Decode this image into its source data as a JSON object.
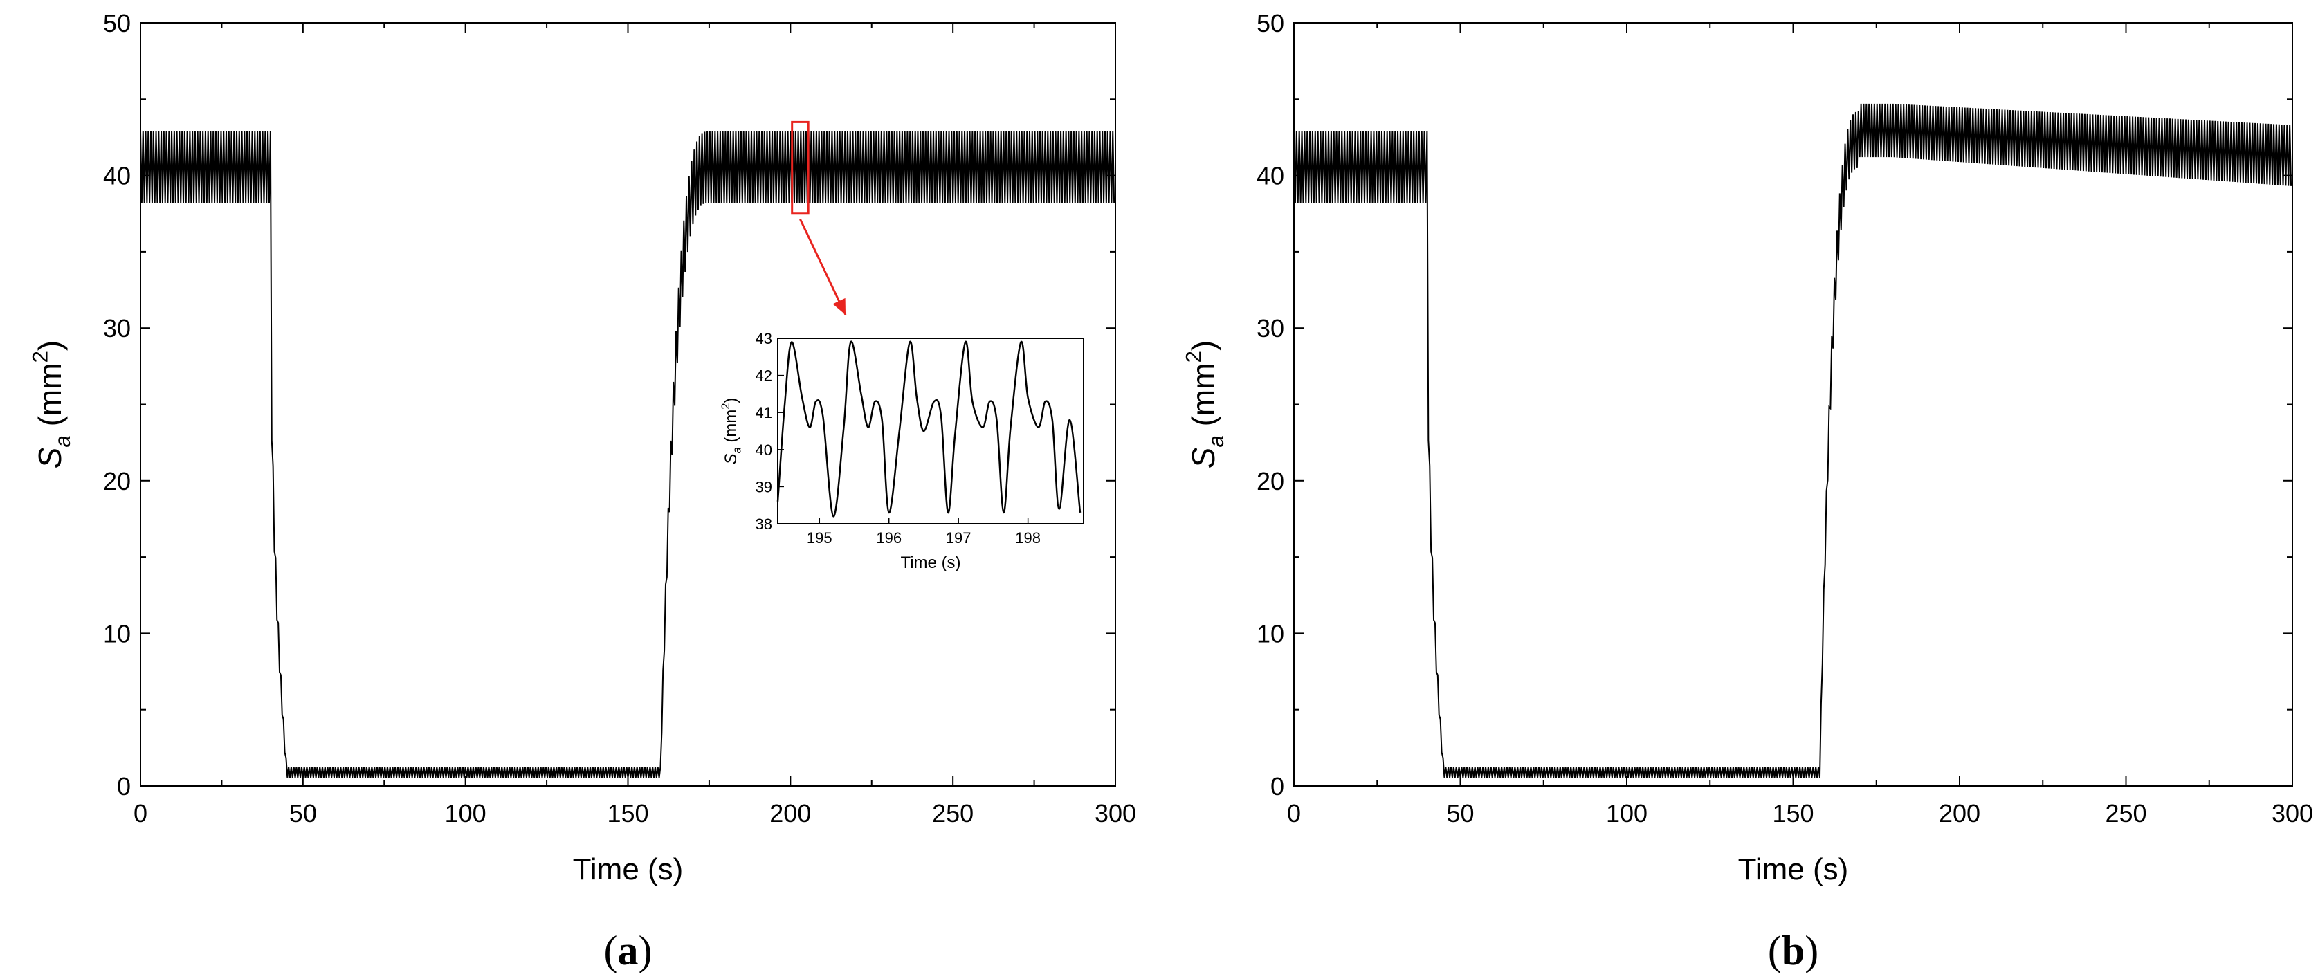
{
  "chart_data": [
    {
      "type": "line",
      "panel_label": "a",
      "xlabel": "Time (s)",
      "ylabel": {
        "symbol": "S",
        "subscript": "a",
        "unit_open": " (mm",
        "unit_sup": "2",
        "unit_close": ")"
      },
      "xlim": [
        0,
        300
      ],
      "ylim": [
        0,
        50
      ],
      "xticks": [
        0,
        50,
        100,
        150,
        200,
        250,
        300
      ],
      "yticks": [
        0,
        10,
        20,
        30,
        40,
        50
      ],
      "grid": false,
      "legend": "none",
      "line_color": "#000000",
      "series": [
        {
          "oscillation_period_s": 0.8,
          "segments": [
            {
              "x": [
                0,
                40
              ],
              "low": 38.2,
              "high": 42.9
            },
            {
              "x": [
                40,
                45
              ],
              "transition": "fall",
              "to_low": 0.55,
              "to_high": 1.25
            },
            {
              "x": [
                45,
                160
              ],
              "low": 0.55,
              "high": 1.25
            },
            {
              "x": [
                160,
                175
              ],
              "transition": "rise",
              "to_low": 38.2,
              "to_high": 42.9
            },
            {
              "x": [
                175,
                300
              ],
              "low": 38.2,
              "high": 42.9
            }
          ]
        }
      ],
      "highlight_box": {
        "x": [
          200.5,
          205.5
        ],
        "y": [
          37.5,
          43.5
        ],
        "color": "#e8241f"
      },
      "inset": {
        "type": "line",
        "xlabel": "Time (s)",
        "ylabel": {
          "symbol": "S",
          "subscript": "a",
          "unit_open": " (mm",
          "unit_sup": "2",
          "unit_close": ")"
        },
        "xlim": [
          194.4,
          198.8
        ],
        "ylim": [
          38,
          43
        ],
        "xticks": [
          195,
          196,
          197,
          198
        ],
        "yticks": [
          38,
          39,
          40,
          41,
          42,
          43
        ],
        "x": [
          194.4,
          194.5,
          194.6,
          194.75,
          194.86,
          194.95,
          195.05,
          195.2,
          195.35,
          195.45,
          195.6,
          195.7,
          195.8,
          195.9,
          196.0,
          196.15,
          196.3,
          196.4,
          196.5,
          196.65,
          196.75,
          196.85,
          196.95,
          197.1,
          197.2,
          197.35,
          197.45,
          197.55,
          197.65,
          197.75,
          197.9,
          198.0,
          198.15,
          198.25,
          198.35,
          198.45,
          198.6,
          198.75
        ],
        "y": [
          38.6,
          41.2,
          42.9,
          41.4,
          40.6,
          41.3,
          40.9,
          38.2,
          40.6,
          42.9,
          41.5,
          40.6,
          41.3,
          40.8,
          38.3,
          40.5,
          42.9,
          41.4,
          40.5,
          41.3,
          40.9,
          38.3,
          40.4,
          42.9,
          41.3,
          40.6,
          41.3,
          40.8,
          38.3,
          40.6,
          42.9,
          41.4,
          40.6,
          41.3,
          40.8,
          38.4,
          40.8,
          38.3
        ]
      }
    },
    {
      "type": "line",
      "panel_label": "b",
      "xlabel": "Time (s)",
      "ylabel": {
        "symbol": "S",
        "subscript": "a",
        "unit_open": " (mm",
        "unit_sup": "2",
        "unit_close": ")"
      },
      "xlim": [
        0,
        300
      ],
      "ylim": [
        0,
        50
      ],
      "xticks": [
        0,
        50,
        100,
        150,
        200,
        250,
        300
      ],
      "yticks": [
        0,
        10,
        20,
        30,
        40,
        50
      ],
      "grid": false,
      "legend": "none",
      "line_color": "#000000",
      "series": [
        {
          "oscillation_period_s": 0.8,
          "segments": [
            {
              "x": [
                0,
                40
              ],
              "low": 38.2,
              "high": 42.9
            },
            {
              "x": [
                40,
                45
              ],
              "transition": "fall",
              "to_low": 0.55,
              "to_high": 1.25
            },
            {
              "x": [
                45,
                158
              ],
              "low": 0.55,
              "high": 1.25
            },
            {
              "x": [
                158,
                170
              ],
              "transition": "rise",
              "to_low": 40.5,
              "to_high": 44.2
            },
            {
              "x": [
                170,
                180
              ],
              "low": 41.2,
              "high": 44.7
            },
            {
              "x": [
                180,
                300
              ],
              "low_start": 41.2,
              "low_end": 39.3,
              "high_start": 44.7,
              "high_end": 43.3
            }
          ]
        }
      ]
    }
  ]
}
